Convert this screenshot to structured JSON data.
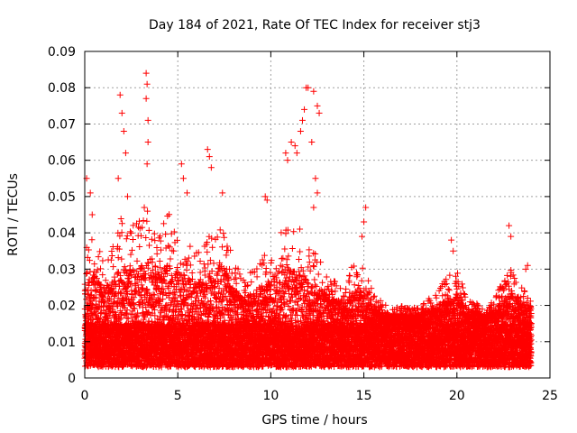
{
  "chart_data": {
    "type": "scatter",
    "title": "Day 184 of 2021, Rate Of TEC Index for receiver stj3",
    "xlabel": "GPS time / hours",
    "ylabel": "ROTI / TECUs",
    "xlim": [
      0,
      25
    ],
    "ylim": [
      0,
      0.09
    ],
    "xticks": [
      0,
      5,
      10,
      15,
      20,
      25
    ],
    "xtick_labels": [
      "0",
      "5",
      "10",
      "15",
      "20",
      "25"
    ],
    "yticks": [
      0,
      0.01,
      0.02,
      0.03,
      0.04,
      0.05,
      0.06,
      0.07,
      0.08,
      0.09
    ],
    "ytick_labels": [
      "0",
      "0.01",
      "0.02",
      "0.03",
      "0.04",
      "0.05",
      "0.06",
      "0.07",
      "0.08",
      "0.09"
    ],
    "grid": true,
    "marker": "+",
    "color": "#ff0000",
    "x_data_range": [
      0,
      24
    ],
    "baseline": [
      0.003,
      0.015
    ],
    "notable_points": [
      {
        "x": 0.1,
        "y": 0.055
      },
      {
        "x": 0.3,
        "y": 0.051
      },
      {
        "x": 0.4,
        "y": 0.045
      },
      {
        "x": 1.9,
        "y": 0.078
      },
      {
        "x": 2.0,
        "y": 0.073
      },
      {
        "x": 2.1,
        "y": 0.068
      },
      {
        "x": 2.2,
        "y": 0.062
      },
      {
        "x": 1.8,
        "y": 0.055
      },
      {
        "x": 2.3,
        "y": 0.05
      },
      {
        "x": 3.3,
        "y": 0.084
      },
      {
        "x": 3.35,
        "y": 0.081
      },
      {
        "x": 3.3,
        "y": 0.077
      },
      {
        "x": 3.4,
        "y": 0.071
      },
      {
        "x": 3.4,
        "y": 0.065
      },
      {
        "x": 3.35,
        "y": 0.059
      },
      {
        "x": 3.2,
        "y": 0.047
      },
      {
        "x": 5.2,
        "y": 0.059
      },
      {
        "x": 5.3,
        "y": 0.055
      },
      {
        "x": 5.5,
        "y": 0.051
      },
      {
        "x": 6.6,
        "y": 0.063
      },
      {
        "x": 6.7,
        "y": 0.061
      },
      {
        "x": 6.8,
        "y": 0.058
      },
      {
        "x": 7.4,
        "y": 0.051
      },
      {
        "x": 9.7,
        "y": 0.05
      },
      {
        "x": 9.8,
        "y": 0.049
      },
      {
        "x": 10.8,
        "y": 0.062
      },
      {
        "x": 10.9,
        "y": 0.06
      },
      {
        "x": 11.1,
        "y": 0.065
      },
      {
        "x": 11.3,
        "y": 0.064
      },
      {
        "x": 11.4,
        "y": 0.062
      },
      {
        "x": 11.6,
        "y": 0.068
      },
      {
        "x": 11.7,
        "y": 0.071
      },
      {
        "x": 11.8,
        "y": 0.074
      },
      {
        "x": 11.9,
        "y": 0.08
      },
      {
        "x": 12.0,
        "y": 0.08
      },
      {
        "x": 12.3,
        "y": 0.079
      },
      {
        "x": 12.5,
        "y": 0.075
      },
      {
        "x": 12.6,
        "y": 0.073
      },
      {
        "x": 12.2,
        "y": 0.065
      },
      {
        "x": 12.4,
        "y": 0.055
      },
      {
        "x": 12.5,
        "y": 0.051
      },
      {
        "x": 12.3,
        "y": 0.047
      },
      {
        "x": 15.1,
        "y": 0.047
      },
      {
        "x": 15.0,
        "y": 0.043
      },
      {
        "x": 14.9,
        "y": 0.039
      },
      {
        "x": 19.7,
        "y": 0.038
      },
      {
        "x": 19.8,
        "y": 0.035
      },
      {
        "x": 22.8,
        "y": 0.042
      },
      {
        "x": 22.9,
        "y": 0.039
      },
      {
        "x": 23.8,
        "y": 0.031
      },
      {
        "x": 23.7,
        "y": 0.03
      }
    ],
    "envelope": [
      {
        "x": 0.0,
        "y": 0.035
      },
      {
        "x": 0.5,
        "y": 0.04
      },
      {
        "x": 1.0,
        "y": 0.033
      },
      {
        "x": 1.5,
        "y": 0.036
      },
      {
        "x": 2.0,
        "y": 0.045
      },
      {
        "x": 2.5,
        "y": 0.042
      },
      {
        "x": 3.0,
        "y": 0.044
      },
      {
        "x": 3.5,
        "y": 0.048
      },
      {
        "x": 4.0,
        "y": 0.04
      },
      {
        "x": 4.5,
        "y": 0.046
      },
      {
        "x": 5.0,
        "y": 0.042
      },
      {
        "x": 5.5,
        "y": 0.038
      },
      {
        "x": 6.0,
        "y": 0.035
      },
      {
        "x": 6.5,
        "y": 0.041
      },
      {
        "x": 7.0,
        "y": 0.04
      },
      {
        "x": 7.5,
        "y": 0.043
      },
      {
        "x": 8.0,
        "y": 0.032
      },
      {
        "x": 8.5,
        "y": 0.028
      },
      {
        "x": 9.0,
        "y": 0.03
      },
      {
        "x": 9.5,
        "y": 0.034
      },
      {
        "x": 10.0,
        "y": 0.036
      },
      {
        "x": 10.5,
        "y": 0.04
      },
      {
        "x": 11.0,
        "y": 0.044
      },
      {
        "x": 11.5,
        "y": 0.042
      },
      {
        "x": 12.0,
        "y": 0.036
      },
      {
        "x": 12.5,
        "y": 0.034
      },
      {
        "x": 13.0,
        "y": 0.029
      },
      {
        "x": 13.5,
        "y": 0.027
      },
      {
        "x": 14.0,
        "y": 0.025
      },
      {
        "x": 14.5,
        "y": 0.033
      },
      {
        "x": 15.0,
        "y": 0.03
      },
      {
        "x": 15.5,
        "y": 0.024
      },
      {
        "x": 16.0,
        "y": 0.021
      },
      {
        "x": 16.5,
        "y": 0.019
      },
      {
        "x": 17.0,
        "y": 0.02
      },
      {
        "x": 17.5,
        "y": 0.019
      },
      {
        "x": 18.0,
        "y": 0.02
      },
      {
        "x": 18.5,
        "y": 0.022
      },
      {
        "x": 19.0,
        "y": 0.025
      },
      {
        "x": 19.5,
        "y": 0.028
      },
      {
        "x": 20.0,
        "y": 0.03
      },
      {
        "x": 20.5,
        "y": 0.023
      },
      {
        "x": 21.0,
        "y": 0.021
      },
      {
        "x": 21.5,
        "y": 0.019
      },
      {
        "x": 22.0,
        "y": 0.022
      },
      {
        "x": 22.5,
        "y": 0.027
      },
      {
        "x": 23.0,
        "y": 0.033
      },
      {
        "x": 23.5,
        "y": 0.025
      },
      {
        "x": 24.0,
        "y": 0.024
      }
    ]
  }
}
